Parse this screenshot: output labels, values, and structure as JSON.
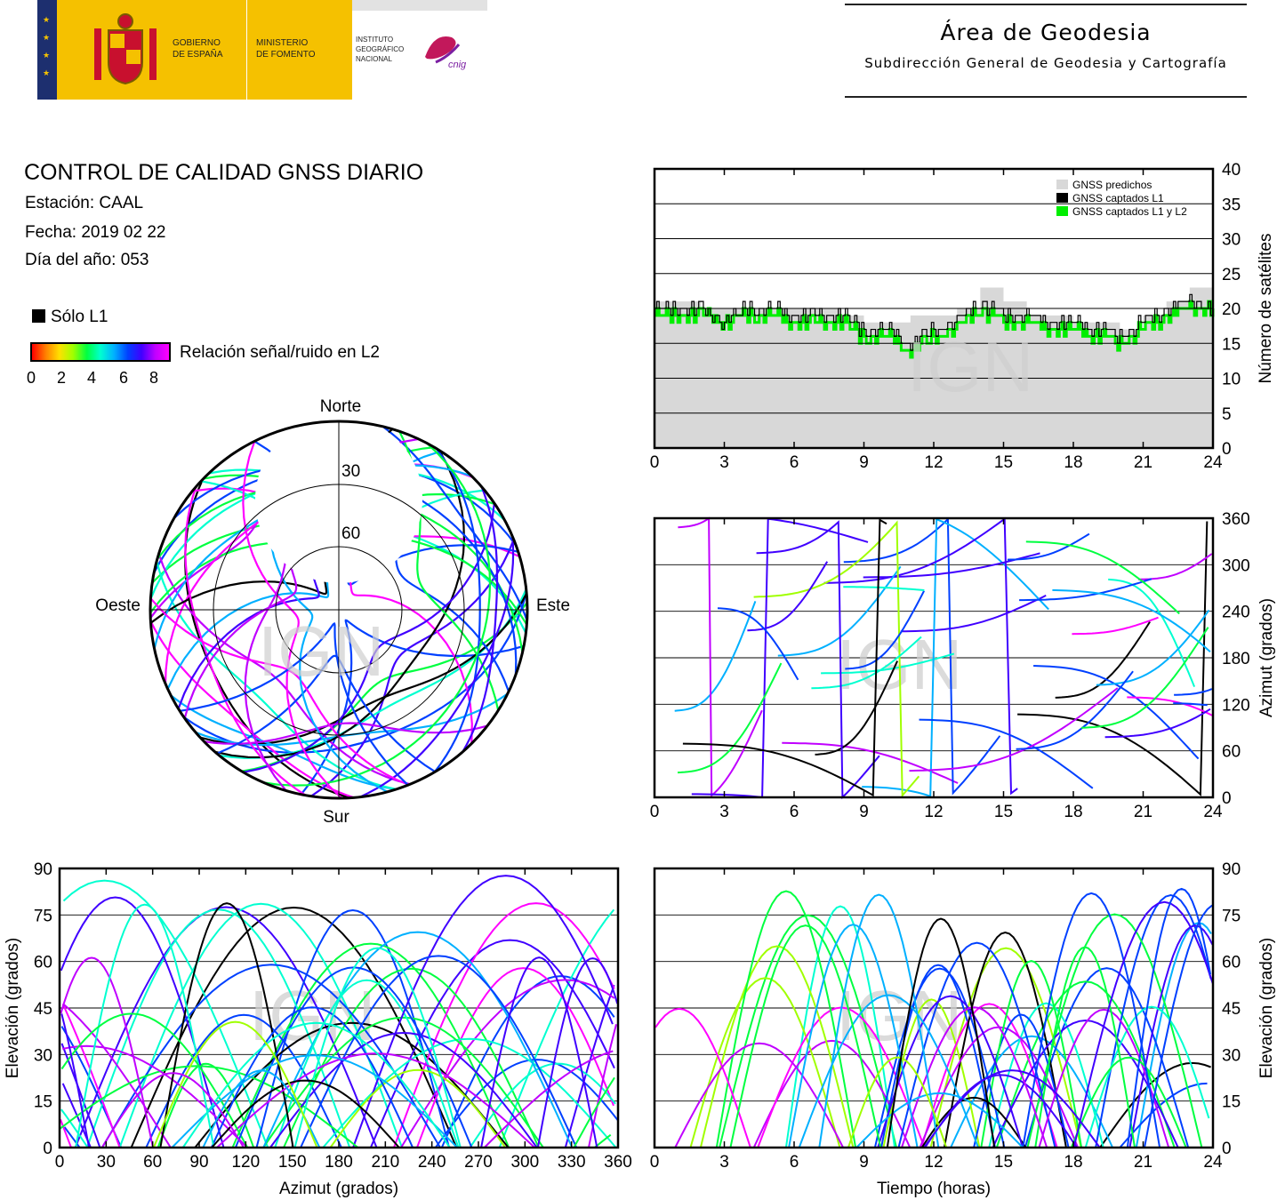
{
  "header": {
    "gov_line1": "GOBIERNO",
    "gov_line2": "DE ESPAÑA",
    "min_line1": "MINISTERIO",
    "min_line2": "DE FOMENTO",
    "ign_line1": "INSTITUTO",
    "ign_line2": "GEOGRÁFICO",
    "ign_line3": "NACIONAL",
    "cnig_text": "cnig",
    "area_title": "Área de Geodesia",
    "area_subtitle": "Subdirección General de Geodesia y Cartografía"
  },
  "report": {
    "title": "CONTROL DE CALIDAD GNSS DIARIO",
    "station": "Estación: CAAL",
    "date": "Fecha: 2019 02 22",
    "doy": "Día del año: 053"
  },
  "legend": {
    "l1_only": "Sólo L1",
    "snr_label": "Relación señal/ruido en L2",
    "snr_ticks": [
      "0",
      "2",
      "4",
      "6",
      "8"
    ]
  },
  "watermark": "IGN",
  "colors": {
    "predicted": "#d8d8d8",
    "l1": "#000000",
    "l1l2": "#00ee00",
    "snr_scale": [
      "#ff0000",
      "#ff8000",
      "#ffe000",
      "#a0ff00",
      "#00ff40",
      "#00ffd0",
      "#00b0ff",
      "#0040ff",
      "#4000ff",
      "#c000ff",
      "#ff00ff"
    ]
  },
  "chart_data": [
    {
      "id": "satellite-count",
      "type": "area",
      "xlabel": "",
      "ylabel": "Número de satélites",
      "xlim": [
        0,
        24
      ],
      "ylim": [
        0,
        40
      ],
      "xticks": [
        "0",
        "3",
        "6",
        "9",
        "12",
        "15",
        "18",
        "21",
        "24"
      ],
      "yticks": [
        "0",
        "5",
        "10",
        "15",
        "20",
        "25",
        "30",
        "35",
        "40"
      ],
      "grid": "horizontal",
      "legend_position": "top-right",
      "x": [
        0,
        1,
        2,
        3,
        4,
        5,
        6,
        7,
        8,
        9,
        10,
        11,
        12,
        13,
        14,
        15,
        16,
        17,
        18,
        19,
        20,
        21,
        22,
        23,
        24
      ],
      "series": [
        {
          "name": "GNSS predichos",
          "values": [
            21,
            21,
            20,
            20,
            20,
            20,
            20,
            20,
            19,
            18,
            18,
            19,
            19,
            20,
            23,
            21,
            19,
            19,
            18,
            18,
            17,
            19,
            21,
            23,
            24
          ]
        },
        {
          "name": "GNSS captados L1",
          "values": [
            20,
            20,
            20,
            18,
            20,
            20,
            19,
            19,
            19,
            17,
            17,
            15,
            17,
            18,
            21,
            19,
            19,
            18,
            18,
            17,
            16,
            18,
            20,
            21,
            20
          ]
        },
        {
          "name": "GNSS captados L1 y L2",
          "values": [
            19,
            19,
            19,
            18,
            19,
            19,
            18,
            18,
            18,
            16,
            16,
            14,
            16,
            17,
            20,
            18,
            18,
            17,
            17,
            16,
            15,
            17,
            19,
            20,
            20
          ]
        }
      ]
    },
    {
      "id": "skyplot",
      "type": "scatter",
      "projection": "polar",
      "labels": {
        "north": "Norte",
        "south": "Sur",
        "east": "Este",
        "west": "Oeste"
      },
      "rings": [
        "30",
        "60"
      ]
    },
    {
      "id": "azimuth-time",
      "type": "scatter",
      "xlabel": "",
      "ylabel": "Azimut (grados)",
      "xlim": [
        0,
        24
      ],
      "ylim": [
        0,
        360
      ],
      "xticks": [
        "0",
        "3",
        "6",
        "9",
        "12",
        "15",
        "18",
        "21",
        "24"
      ],
      "yticks": [
        "0",
        "60",
        "120",
        "180",
        "240",
        "300",
        "360"
      ]
    },
    {
      "id": "elevation-azimuth",
      "type": "scatter",
      "xlabel": "Azimut (grados)",
      "ylabel": "Elevación (grados)",
      "xlim": [
        0,
        360
      ],
      "ylim": [
        0,
        90
      ],
      "xticks": [
        "0",
        "30",
        "60",
        "90",
        "120",
        "150",
        "180",
        "210",
        "240",
        "270",
        "300",
        "330",
        "360"
      ],
      "yticks": [
        "0",
        "15",
        "30",
        "45",
        "60",
        "75",
        "90"
      ]
    },
    {
      "id": "elevation-time",
      "type": "scatter",
      "xlabel": "Tiempo (horas)",
      "ylabel": "Elevación (grados)",
      "xlim": [
        0,
        24
      ],
      "ylim": [
        0,
        90
      ],
      "xticks": [
        "0",
        "3",
        "6",
        "9",
        "12",
        "15",
        "18",
        "21",
        "24"
      ],
      "yticks": [
        "0",
        "15",
        "30",
        "45",
        "60",
        "75",
        "90"
      ]
    }
  ]
}
